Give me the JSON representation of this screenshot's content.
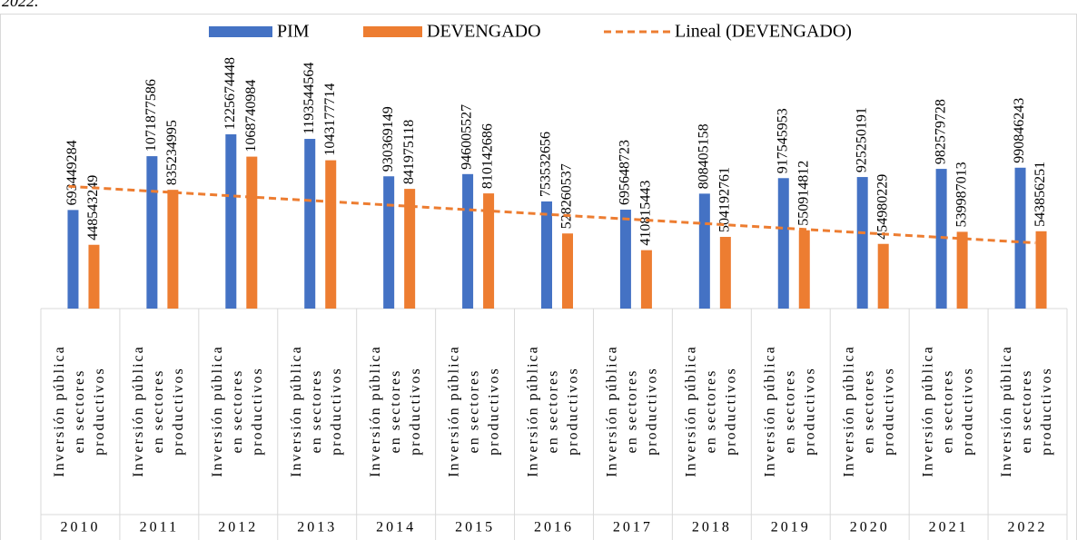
{
  "chart_data": {
    "type": "bar",
    "title": "2022.",
    "categories": [
      "2010",
      "2011",
      "2012",
      "2013",
      "2014",
      "2015",
      "2016",
      "2017",
      "2018",
      "2019",
      "2020",
      "2021",
      "2022"
    ],
    "category_group": [
      "Inversión pública",
      "en sectores",
      "productivos"
    ],
    "series": [
      {
        "name": "PIM",
        "color": "#4472c4",
        "values": [
          693449284,
          1071877586,
          1225674448,
          1193544564,
          930369149,
          946005527,
          753532656,
          695648723,
          808405158,
          917545953,
          925250191,
          982579728,
          990846243
        ]
      },
      {
        "name": "DEVENGADO",
        "color": "#ed7d31",
        "values": [
          448543249,
          835234995,
          1068740984,
          1043177714,
          841975118,
          810142686,
          528260537,
          410815443,
          504192761,
          550914812,
          454980229,
          539987013,
          543856251
        ]
      }
    ],
    "trendline": {
      "name": "Lineal (DEVENGADO)",
      "series": 1,
      "kind": "linear",
      "color": "#ed7d31",
      "style": "dashed"
    },
    "ylim": [
      0,
      1400000000
    ]
  }
}
